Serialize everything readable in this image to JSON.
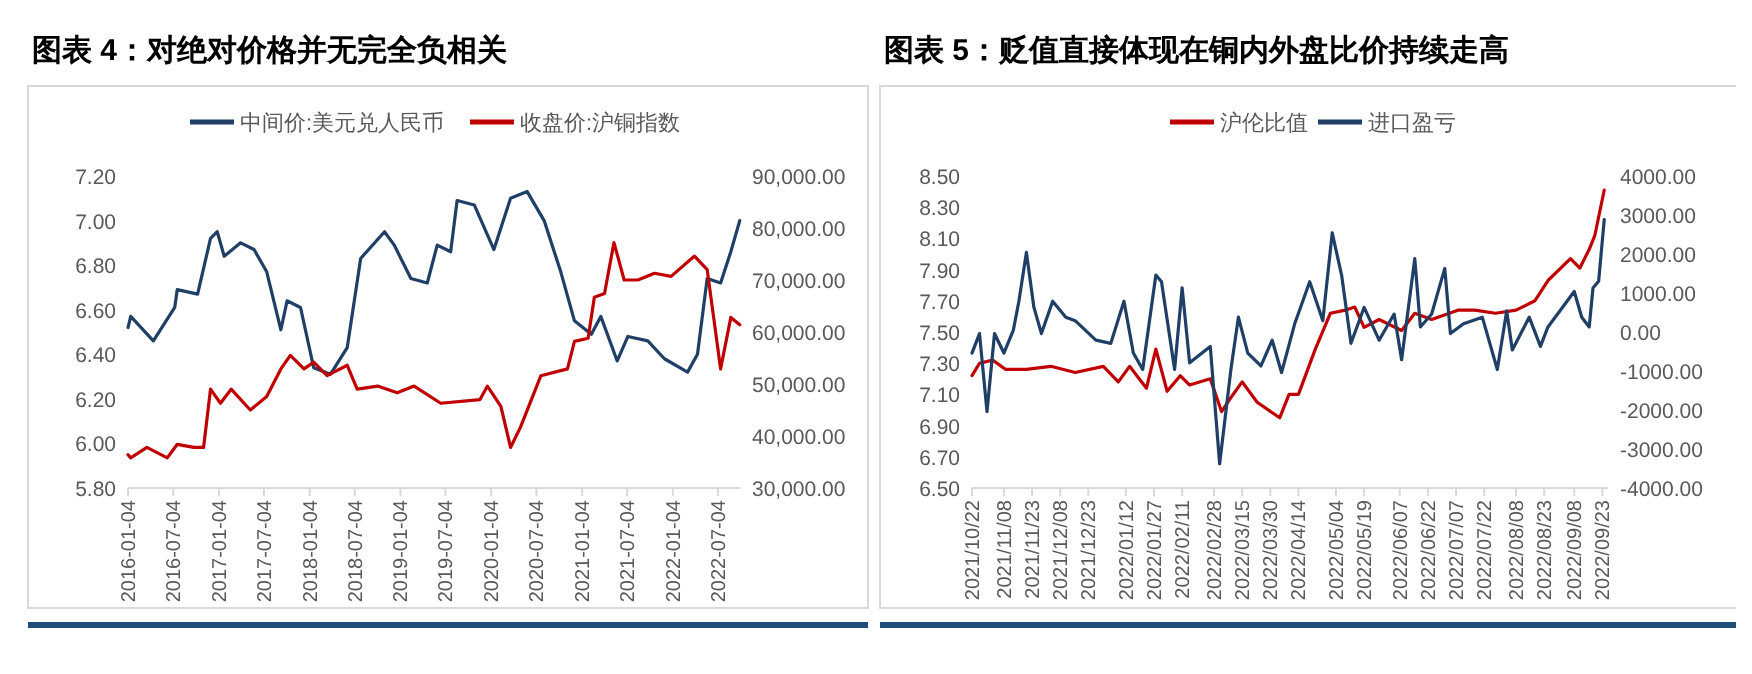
{
  "chart_data": [
    {
      "type": "line",
      "title": "图表 4：对绝对价格并无完全负相关",
      "legend": "top",
      "xlim": [
        "2016-01-04",
        "2022-10-01"
      ],
      "xticks": [
        {
          "value": "2016-01-04",
          "label": "2016-01-04"
        },
        {
          "value": "2016-07-04",
          "label": "2016-07-04"
        },
        {
          "value": "2017-01-04",
          "label": "2017-01-04"
        },
        {
          "value": "2017-07-04",
          "label": "2017-07-04"
        },
        {
          "value": "2018-01-04",
          "label": "2018-01-04"
        },
        {
          "value": "2018-07-04",
          "label": "2018-07-04"
        },
        {
          "value": "2019-01-04",
          "label": "2019-01-04"
        },
        {
          "value": "2019-07-04",
          "label": "2019-07-04"
        },
        {
          "value": "2020-01-04",
          "label": "2020-01-04"
        },
        {
          "value": "2020-07-04",
          "label": "2020-07-04"
        },
        {
          "value": "2021-01-04",
          "label": "2021-01-04"
        },
        {
          "value": "2021-07-04",
          "label": "2021-07-04"
        },
        {
          "value": "2022-01-04",
          "label": "2022-01-04"
        },
        {
          "value": "2022-07-04",
          "label": "2022-07-04"
        }
      ],
      "ylim": [
        5.8,
        7.2
      ],
      "yticks": [
        {
          "value": 5.8,
          "label": "5.80"
        },
        {
          "value": 6,
          "label": "6.00"
        },
        {
          "value": 6.2,
          "label": "6.20"
        },
        {
          "value": 6.4,
          "label": "6.40"
        },
        {
          "value": 6.6,
          "label": "6.60"
        },
        {
          "value": 6.8,
          "label": "6.80"
        },
        {
          "value": 7,
          "label": "7.00"
        },
        {
          "value": 7.2,
          "label": "7.20"
        }
      ],
      "y2lim": [
        30000,
        90000
      ],
      "y2ticks": [
        {
          "value": 30000,
          "label": "30,000.00"
        },
        {
          "value": 40000,
          "label": "40,000.00"
        },
        {
          "value": 50000,
          "label": "50,000.00"
        },
        {
          "value": 60000,
          "label": "60,000.00"
        },
        {
          "value": 70000,
          "label": "70,000.00"
        },
        {
          "value": 80000,
          "label": "80,000.00"
        },
        {
          "value": 90000,
          "label": "90,000.00"
        }
      ],
      "series": [
        {
          "name": "中间价:美元兑人民币",
          "color": "#1f3f66",
          "x": [
            "2016-01-04",
            "2016-01-15",
            "2016-04-15",
            "2016-07-10",
            "2016-07-20",
            "2016-10-10",
            "2016-12-01",
            "2016-12-28",
            "2017-01-25",
            "2017-04-01",
            "2017-05-25",
            "2017-07-15",
            "2017-09-10",
            "2017-10-05",
            "2017-11-28",
            "2018-01-20",
            "2018-03-28",
            "2018-06-04",
            "2018-07-28",
            "2018-11-01",
            "2018-12-10",
            "2019-02-15",
            "2019-04-22",
            "2019-06-01",
            "2019-07-25",
            "2019-08-20",
            "2019-10-28",
            "2020-01-15",
            "2020-03-22",
            "2020-05-28",
            "2020-08-04",
            "2020-10-10",
            "2020-12-04",
            "2021-02-10",
            "2021-03-20",
            "2021-05-25",
            "2021-07-07",
            "2021-09-25",
            "2021-12-01",
            "2022-03-04",
            "2022-04-13",
            "2022-05-22",
            "2022-07-15",
            "2022-08-25",
            "2022-09-30"
          ],
          "values": [
            6.52,
            6.57,
            6.46,
            6.61,
            6.69,
            6.67,
            6.92,
            6.95,
            6.84,
            6.9,
            6.87,
            6.77,
            6.51,
            6.64,
            6.61,
            6.34,
            6.31,
            6.43,
            6.83,
            6.95,
            6.89,
            6.74,
            6.72,
            6.89,
            6.86,
            7.09,
            7.07,
            6.87,
            7.1,
            7.13,
            7.0,
            6.77,
            6.55,
            6.49,
            6.57,
            6.37,
            6.48,
            6.46,
            6.38,
            6.32,
            6.4,
            6.74,
            6.72,
            6.86,
            7.0
          ]
        },
        {
          "name": "收盘价:沪铜指数",
          "color": "#c00000",
          "axis": "y2",
          "x": [
            "2016-01-04",
            "2016-01-15",
            "2016-03-20",
            "2016-06-10",
            "2016-07-20",
            "2016-09-25",
            "2016-11-03",
            "2016-12-01",
            "2017-01-10",
            "2017-02-22",
            "2017-05-10",
            "2017-07-15",
            "2017-09-10",
            "2017-10-18",
            "2017-12-12",
            "2018-01-20",
            "2018-03-15",
            "2018-06-04",
            "2018-07-14",
            "2018-10-04",
            "2018-12-22",
            "2019-02-28",
            "2019-06-15",
            "2019-11-20",
            "2019-12-20",
            "2020-02-12",
            "2020-03-22",
            "2020-05-01",
            "2020-07-22",
            "2020-11-06",
            "2020-12-04",
            "2021-01-28",
            "2021-02-22",
            "2021-04-04",
            "2021-05-12",
            "2021-06-22",
            "2021-08-16",
            "2021-10-22",
            "2021-12-28",
            "2022-04-01",
            "2022-05-22",
            "2022-07-15",
            "2022-08-25",
            "2022-09-30"
          ],
          "values": [
            36400,
            35800,
            37800,
            35800,
            38400,
            37800,
            37800,
            49000,
            46300,
            49000,
            45000,
            47600,
            52900,
            55500,
            52900,
            54200,
            51600,
            53600,
            49000,
            49600,
            48300,
            49600,
            46300,
            47000,
            49600,
            45700,
            37800,
            41700,
            51600,
            52900,
            58200,
            58800,
            66700,
            67400,
            77200,
            70000,
            70000,
            71300,
            70700,
            74600,
            72000,
            52900,
            62800,
            61400
          ]
        }
      ]
    },
    {
      "type": "line",
      "title": "图表 5：贬值直接体现在铜内外盘比价持续走高",
      "legend": "top",
      "xlim": [
        "2021-10-22",
        "2022-09-26"
      ],
      "xticks": [
        {
          "value": "2021-10-22",
          "label": "2021/10/22"
        },
        {
          "value": "2021-11-08",
          "label": "2021/11/08"
        },
        {
          "value": "2021-11-23",
          "label": "2021/11/23"
        },
        {
          "value": "2021-12-08",
          "label": "2021/12/08"
        },
        {
          "value": "2021-12-23",
          "label": "2021/12/23"
        },
        {
          "value": "2022-01-12",
          "label": "2022/01/12"
        },
        {
          "value": "2022-01-27",
          "label": "2022/01/27"
        },
        {
          "value": "2022-02-11",
          "label": "2022/02/11"
        },
        {
          "value": "2022-02-28",
          "label": "2022/02/28"
        },
        {
          "value": "2022-03-15",
          "label": "2022/03/15"
        },
        {
          "value": "2022-03-30",
          "label": "2022/03/30"
        },
        {
          "value": "2022-04-14",
          "label": "2022/04/14"
        },
        {
          "value": "2022-05-04",
          "label": "2022/05/04"
        },
        {
          "value": "2022-05-19",
          "label": "2022/05/19"
        },
        {
          "value": "2022-06-07",
          "label": "2022/06/07"
        },
        {
          "value": "2022-06-22",
          "label": "2022/06/22"
        },
        {
          "value": "2022-07-07",
          "label": "2022/07/07"
        },
        {
          "value": "2022-07-22",
          "label": "2022/07/22"
        },
        {
          "value": "2022-08-08",
          "label": "2022/08/08"
        },
        {
          "value": "2022-08-23",
          "label": "2022/08/23"
        },
        {
          "value": "2022-09-08",
          "label": "2022/09/08"
        },
        {
          "value": "2022-09-23",
          "label": "2022/09/23"
        }
      ],
      "ylim": [
        6.5,
        8.5
      ],
      "yticks": [
        {
          "value": 6.5,
          "label": "6.50"
        },
        {
          "value": 6.7,
          "label": "6.70"
        },
        {
          "value": 6.9,
          "label": "6.90"
        },
        {
          "value": 7.1,
          "label": "7.10"
        },
        {
          "value": 7.3,
          "label": "7.30"
        },
        {
          "value": 7.5,
          "label": "7.50"
        },
        {
          "value": 7.7,
          "label": "7.70"
        },
        {
          "value": 7.9,
          "label": "7.90"
        },
        {
          "value": 8.1,
          "label": "8.10"
        },
        {
          "value": 8.3,
          "label": "8.30"
        },
        {
          "value": 8.5,
          "label": "8.50"
        }
      ],
      "y2lim": [
        -4000,
        4000
      ],
      "y2ticks": [
        {
          "value": -4000,
          "label": "-4000.00"
        },
        {
          "value": -3000,
          "label": "-3000.00"
        },
        {
          "value": -2000,
          "label": "-2000.00"
        },
        {
          "value": -1000,
          "label": "-1000.00"
        },
        {
          "value": 0,
          "label": "0.00"
        },
        {
          "value": 1000,
          "label": "1000.00"
        },
        {
          "value": 2000,
          "label": "2000.00"
        },
        {
          "value": 3000,
          "label": "3000.00"
        },
        {
          "value": 4000,
          "label": "4000.00"
        }
      ],
      "series": [
        {
          "name": "沪伦比值",
          "color": "#c00000",
          "x": [
            "2021-10-22",
            "2021-10-26",
            "2021-11-02",
            "2021-11-09",
            "2021-11-20",
            "2021-12-03",
            "2021-12-16",
            "2021-12-31",
            "2022-01-08",
            "2022-01-14",
            "2022-01-23",
            "2022-01-28",
            "2022-02-03",
            "2022-02-10",
            "2022-02-15",
            "2022-02-26",
            "2022-03-04",
            "2022-03-09",
            "2022-03-15",
            "2022-03-23",
            "2022-04-04",
            "2022-04-09",
            "2022-04-14",
            "2022-04-23",
            "2022-05-01",
            "2022-05-09",
            "2022-05-14",
            "2022-05-19",
            "2022-05-27",
            "2022-06-08",
            "2022-06-15",
            "2022-06-24",
            "2022-07-08",
            "2022-07-17",
            "2022-07-28",
            "2022-08-08",
            "2022-08-18",
            "2022-08-25",
            "2022-09-06",
            "2022-09-11",
            "2022-09-16",
            "2022-09-19",
            "2022-09-24"
          ],
          "values": [
            7.22,
            7.3,
            7.32,
            7.26,
            7.26,
            7.28,
            7.24,
            7.28,
            7.18,
            7.28,
            7.14,
            7.39,
            7.12,
            7.22,
            7.16,
            7.2,
            6.99,
            7.08,
            7.18,
            7.05,
            6.95,
            7.1,
            7.1,
            7.39,
            7.62,
            7.64,
            7.66,
            7.53,
            7.58,
            7.51,
            7.62,
            7.58,
            7.64,
            7.64,
            7.62,
            7.64,
            7.7,
            7.83,
            7.97,
            7.91,
            8.03,
            8.12,
            8.41
          ]
        },
        {
          "name": "进口盈亏",
          "color": "#1f3f66",
          "axis": "y2",
          "x": [
            "2021-10-22",
            "2021-10-26",
            "2021-10-30",
            "2021-11-03",
            "2021-11-08",
            "2021-11-13",
            "2021-11-16",
            "2021-11-20",
            "2021-11-24",
            "2021-11-28",
            "2021-12-04",
            "2021-12-11",
            "2021-12-16",
            "2021-12-27",
            "2022-01-04",
            "2022-01-11",
            "2022-01-16",
            "2022-01-21",
            "2022-01-28",
            "2022-01-31",
            "2022-02-07",
            "2022-02-11",
            "2022-02-15",
            "2022-02-26",
            "2022-03-03",
            "2022-03-09",
            "2022-03-13",
            "2022-03-18",
            "2022-03-25",
            "2022-03-31",
            "2022-04-05",
            "2022-04-12",
            "2022-04-20",
            "2022-04-27",
            "2022-05-02",
            "2022-05-07",
            "2022-05-12",
            "2022-05-19",
            "2022-05-27",
            "2022-06-04",
            "2022-06-08",
            "2022-06-15",
            "2022-06-18",
            "2022-06-24",
            "2022-07-01",
            "2022-07-04",
            "2022-07-11",
            "2022-07-21",
            "2022-07-29",
            "2022-08-03",
            "2022-08-06",
            "2022-08-15",
            "2022-08-21",
            "2022-08-25",
            "2022-09-08",
            "2022-09-12",
            "2022-09-16",
            "2022-09-18",
            "2022-09-21",
            "2022-09-24"
          ],
          "values": [
            -540,
            -40,
            -2040,
            -40,
            -540,
            40,
            790,
            2040,
            630,
            -40,
            790,
            380,
            290,
            -210,
            -290,
            790,
            -540,
            -960,
            1460,
            1290,
            -960,
            1130,
            -790,
            -370,
            -3380,
            -960,
            380,
            -540,
            -870,
            -210,
            -1040,
            210,
            1290,
            290,
            2540,
            1460,
            -290,
            630,
            -210,
            460,
            -710,
            1880,
            130,
            460,
            1630,
            -40,
            210,
            380,
            -960,
            540,
            -460,
            380,
            -370,
            130,
            1040,
            380,
            130,
            1130,
            1300,
            2880
          ]
        }
      ]
    }
  ]
}
